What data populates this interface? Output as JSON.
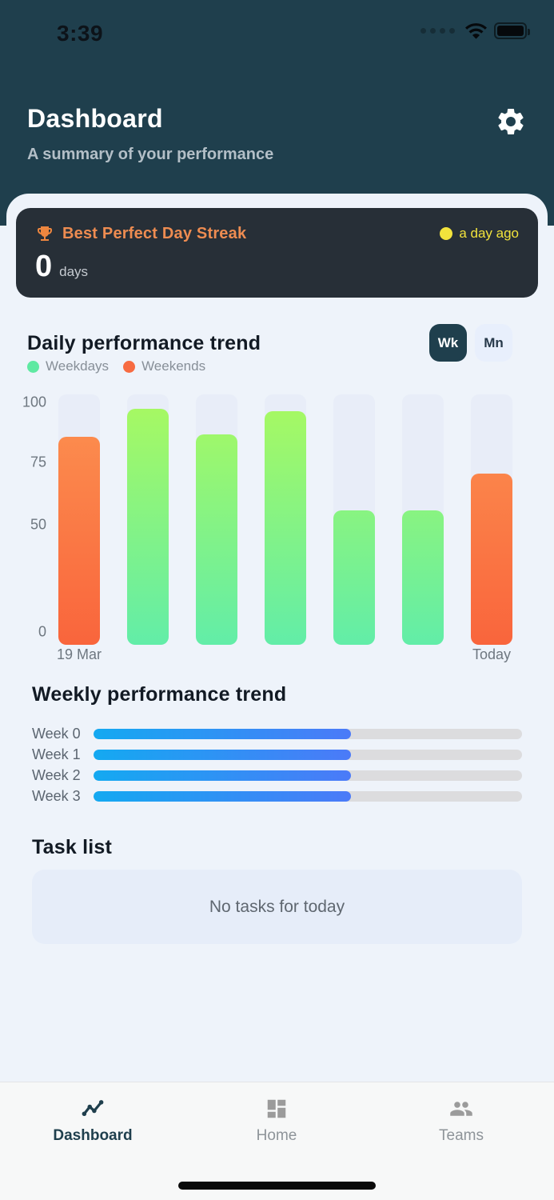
{
  "status_bar": {
    "time": "3:39"
  },
  "header": {
    "title": "Dashboard",
    "subtitle": "A summary of your performance"
  },
  "streak_card": {
    "title": "Best Perfect Day Streak",
    "status": "a day ago",
    "value": "0",
    "unit": "days"
  },
  "daily_section": {
    "title": "Daily performance trend",
    "toggle": {
      "week_label": "Wk",
      "month_label": "Mn",
      "selected": "Wk"
    },
    "legend": [
      {
        "label": "Weekdays",
        "color": "#5fe9a2"
      },
      {
        "label": "Weekends",
        "color": "#f76b41"
      }
    ]
  },
  "weekly_section": {
    "title": "Weekly performance trend"
  },
  "task_section": {
    "title": "Task list",
    "empty_message": "No tasks for today"
  },
  "bottom_nav": {
    "items": [
      {
        "label": "Dashboard",
        "active": true
      },
      {
        "label": "Home",
        "active": false
      },
      {
        "label": "Teams",
        "active": false
      }
    ]
  },
  "chart_data": [
    {
      "type": "bar",
      "title": "Daily performance trend",
      "categories": [
        "19 Mar",
        "",
        "",
        "",
        "",
        "",
        "Today"
      ],
      "series": [
        {
          "name": "daily performance",
          "values": [
            87,
            99,
            88,
            98,
            55,
            55,
            71
          ]
        }
      ],
      "bar_kinds": [
        "weekend",
        "weekday",
        "weekday",
        "weekday",
        "weekday",
        "weekday",
        "weekend"
      ],
      "ylim": [
        0,
        100
      ],
      "yticks": [
        100,
        75,
        50,
        0
      ],
      "xlabel": "",
      "ylabel": "",
      "grid": false,
      "legend_position": "top-left",
      "colors": {
        "weekday_gradient": [
          "#a8f961",
          "#62eda8"
        ],
        "weekend_gradient": [
          "#fc9150",
          "#f9653c"
        ],
        "track": "#e8edf8"
      }
    },
    {
      "type": "bar",
      "orientation": "horizontal",
      "title": "Weekly performance trend",
      "categories": [
        "Week 0",
        "Week 1",
        "Week 2",
        "Week 3"
      ],
      "values": [
        60,
        60,
        60,
        60
      ],
      "xlim": [
        0,
        100
      ],
      "grid": false,
      "colors": {
        "fill_gradient": [
          "#14a9f1",
          "#4b7af8"
        ],
        "track": "#dcdcde"
      }
    }
  ]
}
